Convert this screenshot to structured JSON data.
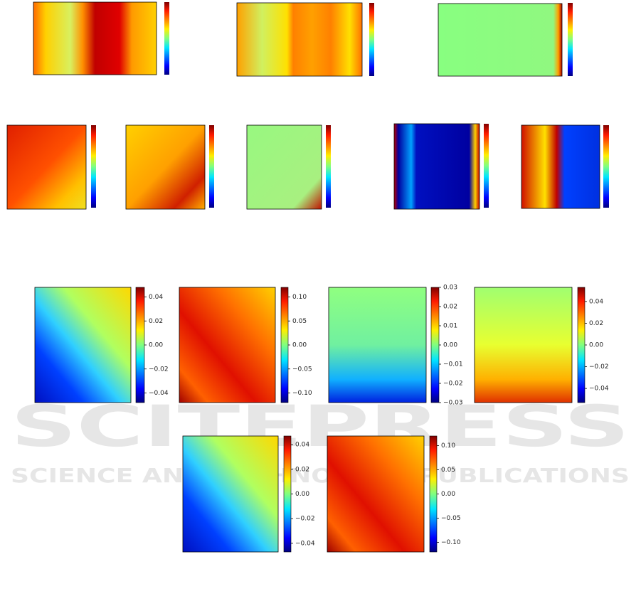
{
  "figures": [
    {
      "colorbar": {
        "lim": [
          -0.048,
          0.048
        ],
        "ticks": [
          {
            "value": -0.04,
            "label": "−0.04"
          },
          {
            "value": -0.02,
            "label": "−0.02"
          },
          {
            "value": 0,
            "label": "0.00"
          },
          0.02,
          0.04
        ]
      }
    },
    {
      "colorbar": {
        "lim": [
          -0.12,
          0.12
        ],
        "ticks": [
          {
            "value": -0.1,
            "label": "−0.10"
          },
          {
            "value": -0.05,
            "label": "−0.05"
          },
          {
            "value": 0,
            "label": "0.00"
          },
          0.05,
          {
            "value": 0.1,
            "label": "0.10"
          }
        ]
      }
    },
    {
      "colorbar": {
        "lim": [
          -0.03,
          0.03
        ],
        "ticks": [
          {
            "value": -0.03,
            "label": "−0.03"
          },
          {
            "value": -0.02,
            "label": "−0.02"
          },
          {
            "value": -0.01,
            "label": "−0.01"
          },
          {
            "value": 0,
            "label": "0.00"
          },
          0.01,
          0.02,
          0.03
        ]
      }
    },
    {
      "colorbar": {
        "lim": [
          -0.053,
          0.053
        ],
        "ticks": [
          {
            "value": -0.04,
            "label": "−0.04"
          },
          {
            "value": -0.02,
            "label": "−0.02"
          },
          {
            "value": 0,
            "label": "0.00"
          },
          0.02,
          0.04
        ]
      }
    },
    {
      "colorbar": {
        "lim": [
          -0.047,
          0.047
        ],
        "ticks": [
          {
            "value": -0.04,
            "label": "−0.04"
          },
          {
            "value": -0.02,
            "label": "−0.02"
          },
          {
            "value": 0,
            "label": "0.00"
          },
          0.02,
          0.04
        ]
      }
    },
    {
      "colorbar": {
        "lim": [
          -0.12,
          0.12
        ],
        "ticks": [
          {
            "value": -0.1,
            "label": "−0.10"
          },
          {
            "value": -0.05,
            "label": "−0.05"
          },
          {
            "value": 0,
            "label": "0.00"
          },
          0.05,
          {
            "value": 0.1,
            "label": "0.10"
          }
        ]
      }
    }
  ],
  "watermark": {
    "title": "SCITEPRESS",
    "subtitle": "SCIENCE AND TECHNOLOGY PUBLICATIONS"
  }
}
